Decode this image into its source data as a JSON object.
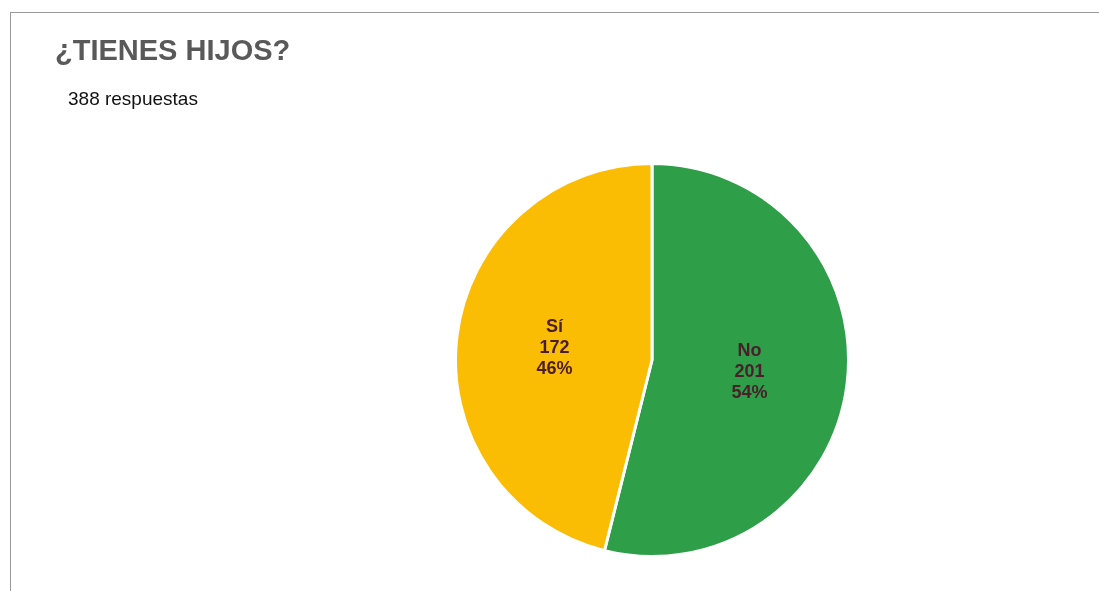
{
  "chart_data": {
    "type": "pie",
    "title": "¿TIENES HIJOS?",
    "subtitle": "388 respuestas",
    "categories": [
      "No",
      "Sí"
    ],
    "values": [
      201,
      172
    ],
    "colors": [
      "#2e9e48",
      "#fbbc04"
    ],
    "value_labels": [
      "201\n54%",
      "172\n46%"
    ],
    "legend": false
  }
}
